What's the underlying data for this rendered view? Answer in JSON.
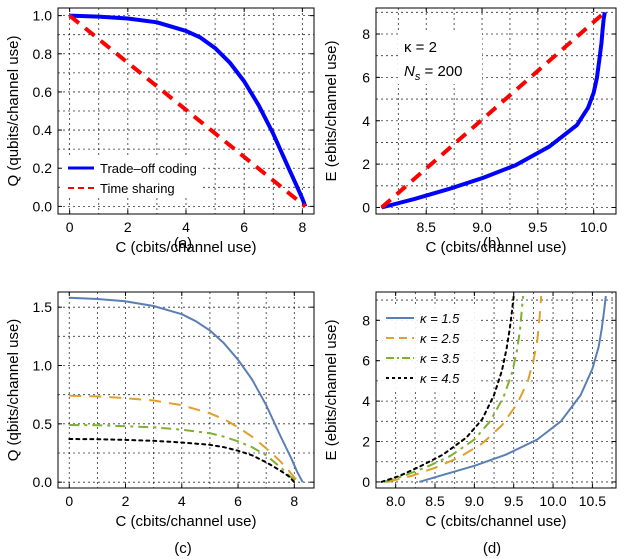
{
  "chart_data": [
    {
      "id": "a",
      "type": "line",
      "panel_label": "(a)",
      "xlabel": "C (cbits/channel use)",
      "ylabel": "Q (qubits/channel use)",
      "xlim": [
        -0.4,
        8.4
      ],
      "ylim": [
        -0.04,
        1.04
      ],
      "xticks": [
        0,
        2,
        4,
        6,
        8
      ],
      "yticks": [
        0.0,
        0.2,
        0.4,
        0.6,
        0.8,
        1.0
      ],
      "xtick_labels": [
        "0",
        "2",
        "4",
        "6",
        "8"
      ],
      "ytick_labels": [
        "0.0",
        "0.2",
        "0.4",
        "0.6",
        "0.8",
        "1.0"
      ],
      "grid": true,
      "legend_position": "bottom-left",
      "series": [
        {
          "name": "Trade–off coding",
          "color": "#0000ff",
          "dash": "solid",
          "width": 4,
          "x": [
            0,
            1,
            2,
            3,
            4,
            4.5,
            5,
            5.5,
            6,
            6.5,
            7,
            7.5,
            7.8,
            8.0,
            8.1
          ],
          "y": [
            1.0,
            0.995,
            0.985,
            0.965,
            0.92,
            0.885,
            0.83,
            0.755,
            0.655,
            0.53,
            0.38,
            0.21,
            0.11,
            0.04,
            0.0
          ]
        },
        {
          "name": "Time sharing",
          "color": "#ff0000",
          "dash": "dashed",
          "width": 4,
          "x": [
            0,
            8.1
          ],
          "y": [
            1.0,
            0.0
          ]
        }
      ]
    },
    {
      "id": "b",
      "type": "line",
      "panel_label": "(b)",
      "xlabel": "C (cbits/channel use)",
      "ylabel": "E (ebits/channel use)",
      "xlim": [
        8.05,
        10.2
      ],
      "ylim": [
        -0.3,
        9.2
      ],
      "xticks": [
        8.5,
        9.0,
        9.5,
        10.0
      ],
      "yticks": [
        0,
        2,
        4,
        6,
        8
      ],
      "xtick_labels": [
        "8.5",
        "9.0",
        "9.5",
        "10.0"
      ],
      "ytick_labels": [
        "0",
        "2",
        "4",
        "6",
        "8"
      ],
      "grid": true,
      "annotations": [
        "κ = 2",
        "Ns = 200"
      ],
      "series": [
        {
          "name": "",
          "color": "#0000ff",
          "dash": "solid",
          "width": 4,
          "x": [
            8.1,
            8.4,
            8.7,
            9.0,
            9.3,
            9.6,
            9.85,
            9.95,
            10.0,
            10.03,
            10.05,
            10.07,
            10.08,
            10.09,
            10.1
          ],
          "y": [
            0.0,
            0.4,
            0.85,
            1.35,
            1.95,
            2.8,
            3.8,
            4.6,
            5.3,
            6.0,
            6.8,
            7.6,
            8.2,
            8.7,
            9.0
          ]
        },
        {
          "name": "",
          "color": "#ff0000",
          "dash": "dashed",
          "width": 4,
          "x": [
            8.1,
            10.1
          ],
          "y": [
            0.0,
            9.0
          ]
        }
      ]
    },
    {
      "id": "c",
      "type": "line",
      "panel_label": "(c)",
      "xlabel": "C (cbits/channel use)",
      "ylabel": "Q (qbits/channel use)",
      "xlim": [
        -0.4,
        8.7
      ],
      "ylim": [
        -0.05,
        1.63
      ],
      "xticks": [
        0,
        2,
        4,
        6,
        8
      ],
      "yticks": [
        0.0,
        0.5,
        1.0,
        1.5
      ],
      "xtick_labels": [
        "0",
        "2",
        "4",
        "6",
        "8"
      ],
      "ytick_labels": [
        "0.0",
        "0.5",
        "1.0",
        "1.5"
      ],
      "grid": true,
      "series": [
        {
          "name": "",
          "color": "#5b7fb5",
          "dash": "solid",
          "width": 2,
          "x": [
            0,
            1,
            2,
            3,
            4,
            4.5,
            5,
            5.5,
            6,
            6.5,
            7,
            7.5,
            7.9,
            8.1,
            8.3
          ],
          "y": [
            1.58,
            1.57,
            1.55,
            1.51,
            1.44,
            1.38,
            1.3,
            1.19,
            1.05,
            0.88,
            0.66,
            0.4,
            0.2,
            0.09,
            0.0
          ]
        },
        {
          "name": "",
          "color": "#e0a02c",
          "dash": "dashed",
          "width": 2,
          "x": [
            0,
            1,
            2,
            3,
            4,
            5,
            5.5,
            6,
            6.5,
            7,
            7.5,
            7.8,
            8.0,
            8.2
          ],
          "y": [
            0.74,
            0.735,
            0.72,
            0.7,
            0.66,
            0.59,
            0.54,
            0.47,
            0.39,
            0.29,
            0.18,
            0.1,
            0.04,
            0.0
          ]
        },
        {
          "name": "",
          "color": "#80b030",
          "dash": "dashdot",
          "width": 2,
          "x": [
            0,
            1,
            2,
            3,
            4,
            5,
            5.5,
            6,
            6.5,
            7,
            7.5,
            7.8,
            8.1
          ],
          "y": [
            0.49,
            0.488,
            0.48,
            0.47,
            0.45,
            0.42,
            0.39,
            0.35,
            0.3,
            0.23,
            0.13,
            0.06,
            0.0
          ]
        },
        {
          "name": "",
          "color": "#000000",
          "dash": "dotted",
          "width": 2,
          "x": [
            0,
            1,
            2,
            3,
            4,
            5,
            5.5,
            6,
            6.5,
            7,
            7.5,
            7.8,
            8.0
          ],
          "y": [
            0.37,
            0.368,
            0.362,
            0.355,
            0.34,
            0.32,
            0.3,
            0.27,
            0.23,
            0.17,
            0.1,
            0.05,
            0.0
          ]
        }
      ]
    },
    {
      "id": "d",
      "type": "line",
      "panel_label": "(d)",
      "xlabel": "C (cbits/channel use)",
      "ylabel": "E (ebits/channel use)",
      "xlim": [
        7.75,
        10.8
      ],
      "ylim": [
        -0.3,
        9.4
      ],
      "xticks": [
        8.0,
        8.5,
        9.0,
        9.5,
        10.0,
        10.5
      ],
      "yticks": [
        0,
        2,
        4,
        6,
        8
      ],
      "xtick_labels": [
        "8.0",
        "8.5",
        "9.0",
        "9.5",
        "10.0",
        "10.5"
      ],
      "ytick_labels": [
        "0",
        "2",
        "4",
        "6",
        "8"
      ],
      "grid": true,
      "legend_position": "top-left",
      "series": [
        {
          "name": "κ = 1.5",
          "color": "#5b7fb5",
          "dash": "solid",
          "width": 2,
          "x": [
            8.3,
            8.6,
            9.0,
            9.4,
            9.8,
            10.1,
            10.35,
            10.5,
            10.58,
            10.62,
            10.65,
            10.67
          ],
          "y": [
            0.0,
            0.35,
            0.8,
            1.35,
            2.1,
            3.0,
            4.3,
            5.6,
            6.7,
            7.6,
            8.5,
            9.2
          ]
        },
        {
          "name": "κ = 2.5",
          "color": "#e0a02c",
          "dash": "dashed",
          "width": 2,
          "x": [
            7.9,
            8.2,
            8.5,
            8.8,
            9.1,
            9.35,
            9.55,
            9.68,
            9.75,
            9.8,
            9.83,
            9.85
          ],
          "y": [
            0.0,
            0.3,
            0.7,
            1.2,
            1.9,
            2.8,
            3.9,
            5.0,
            6.0,
            7.0,
            8.2,
            9.2
          ]
        },
        {
          "name": "κ = 3.5",
          "color": "#80b030",
          "dash": "dashdot",
          "width": 2,
          "x": [
            7.85,
            8.1,
            8.4,
            8.7,
            9.0,
            9.2,
            9.37,
            9.48,
            9.54,
            9.58,
            9.6,
            9.62
          ],
          "y": [
            0.0,
            0.3,
            0.75,
            1.3,
            2.1,
            3.0,
            4.2,
            5.4,
            6.5,
            7.5,
            8.4,
            9.2
          ]
        },
        {
          "name": "κ = 4.5",
          "color": "#000000",
          "dash": "dotted",
          "width": 2,
          "x": [
            7.82,
            8.05,
            8.3,
            8.6,
            8.9,
            9.1,
            9.25,
            9.35,
            9.41,
            9.45,
            9.48,
            9.5
          ],
          "y": [
            0.0,
            0.3,
            0.75,
            1.35,
            2.2,
            3.1,
            4.3,
            5.5,
            6.6,
            7.6,
            8.5,
            9.2
          ]
        }
      ]
    }
  ]
}
